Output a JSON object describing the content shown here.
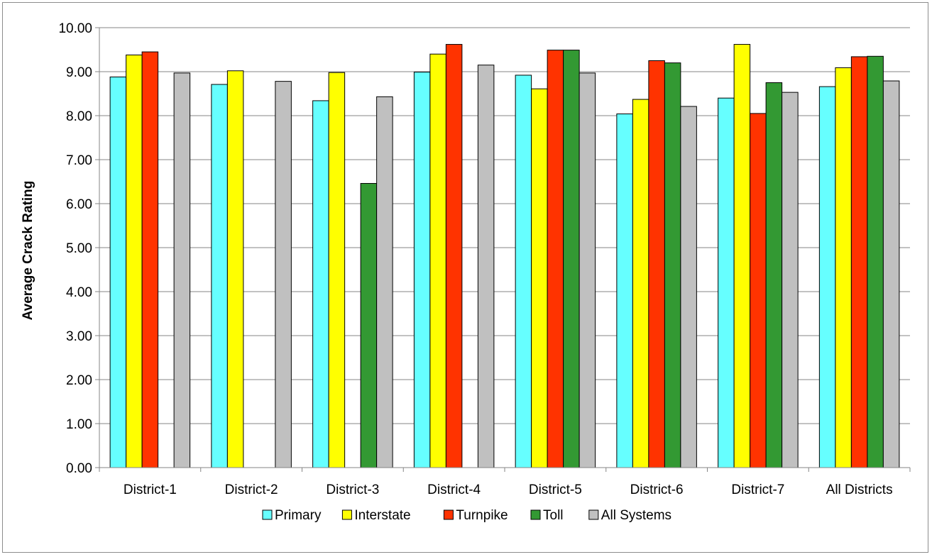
{
  "chart_data": {
    "type": "bar",
    "title": "",
    "xlabel": "",
    "ylabel": "Average Crack Rating",
    "ylim": [
      0,
      10
    ],
    "ytick_labels": [
      "0.00",
      "1.00",
      "2.00",
      "3.00",
      "4.00",
      "5.00",
      "6.00",
      "7.00",
      "8.00",
      "9.00",
      "10.00"
    ],
    "grid": true,
    "legend_position": "bottom",
    "categories": [
      "District-1",
      "District-2",
      "District-3",
      "District-4",
      "District-5",
      "District-6",
      "District-7",
      "All Districts"
    ],
    "series": [
      {
        "name": "Primary",
        "color": "#66ffff",
        "values": [
          8.88,
          8.71,
          8.34,
          8.99,
          8.92,
          8.04,
          8.4,
          8.66
        ]
      },
      {
        "name": "Interstate",
        "color": "#ffff00",
        "values": [
          9.38,
          9.02,
          8.98,
          9.4,
          8.61,
          8.37,
          9.62,
          9.09
        ]
      },
      {
        "name": "Turnpike",
        "color": "#ff3300",
        "values": [
          9.45,
          null,
          null,
          9.62,
          9.49,
          9.25,
          8.05,
          9.34
        ]
      },
      {
        "name": "Toll",
        "color": "#339933",
        "values": [
          null,
          null,
          6.46,
          null,
          9.49,
          9.2,
          8.75,
          9.35
        ]
      },
      {
        "name": "All Systems",
        "color": "#c0c0c0",
        "values": [
          8.97,
          8.78,
          8.43,
          9.15,
          8.97,
          8.21,
          8.53,
          8.79
        ]
      }
    ]
  }
}
